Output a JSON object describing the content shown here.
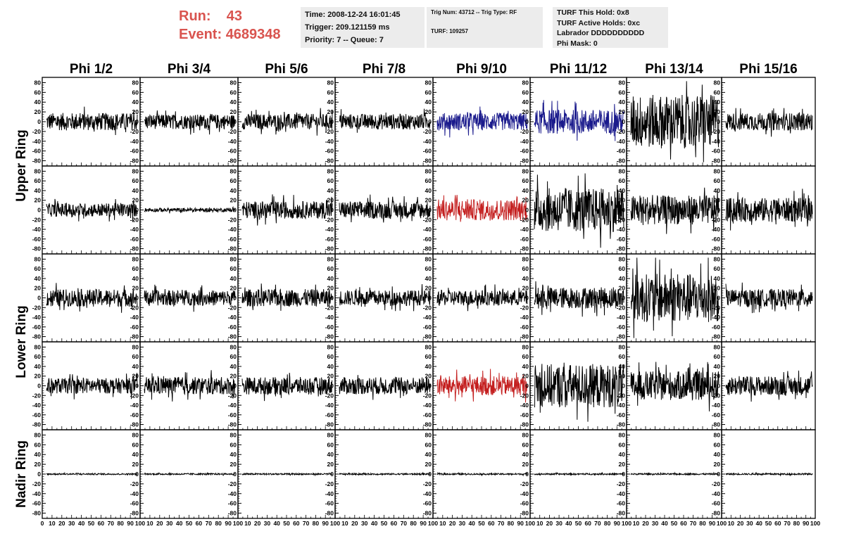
{
  "header": {
    "run_label": "Run:",
    "run_value": "43",
    "event_label": "Event:",
    "event_value": "4689348",
    "time_line": "Time: 2008-12-24 16:01:45",
    "trigger_line": "Trigger: 209.121159 ms",
    "priority_line": "Priority: 7 -- Queue: 7",
    "trig_line": "Trig Num: 43712 -- Trig Type: RF",
    "turf_line": "TURF: 109257",
    "turf_hold_line": "TURF This Hold: 0x8",
    "turf_active_line": "TURF Active Holds: 0xc",
    "labrador_line": "Labrador DDDDDDDDDD",
    "phi_mask_line": "Phi Mask: 0"
  },
  "colors": {
    "run_text": "#d9544f",
    "trace_default": "#000000",
    "trace_blue": "#1a1a8c",
    "trace_red": "#c42020",
    "info_box_bg": "#ececec"
  },
  "chart_data": {
    "type": "line",
    "column_labels": [
      "Phi 1/2",
      "Phi 3/4",
      "Phi 5/6",
      "Phi 7/8",
      "Phi 9/10",
      "Phi 11/12",
      "Phi 13/14",
      "Phi 15/16"
    ],
    "row_labels": [
      "Upper Ring",
      "Lower Ring",
      "Nadir Ring"
    ],
    "panel_rows_per_group": [
      2,
      2,
      1
    ],
    "ylim": [
      -85,
      85
    ],
    "yticks": [
      -80,
      -60,
      -40,
      -20,
      0,
      20,
      40,
      60,
      80
    ],
    "xlim": [
      0,
      100
    ],
    "xticks_first_panel": [
      "0",
      "10",
      "20",
      "30",
      "40",
      "50",
      "60",
      "70",
      "80",
      "90",
      "100"
    ],
    "xticks_bottom_labels": [
      "0",
      "10",
      "20",
      "30",
      "40",
      "50",
      "60",
      "70",
      "80",
      "90",
      "100"
    ],
    "grid": false,
    "panels_amplitude": [
      [
        18,
        15,
        16,
        16,
        18,
        25,
        55,
        18
      ],
      [
        14,
        4,
        18,
        18,
        22,
        45,
        30,
        25
      ],
      [
        18,
        16,
        18,
        16,
        16,
        22,
        50,
        18
      ],
      [
        16,
        18,
        18,
        18,
        20,
        45,
        30,
        20
      ],
      [
        1.5,
        1.5,
        1.5,
        1.5,
        1.5,
        1.5,
        1.5,
        1.5
      ]
    ],
    "panels_color": [
      [
        "default",
        "default",
        "default",
        "default",
        "blue",
        "blue",
        "default",
        "default"
      ],
      [
        "default",
        "default",
        "default",
        "default",
        "red",
        "default",
        "default",
        "default"
      ],
      [
        "default",
        "default",
        "default",
        "default",
        "default",
        "default",
        "default",
        "default"
      ],
      [
        "default",
        "default",
        "default",
        "default",
        "red",
        "default",
        "default",
        "default"
      ],
      [
        "default",
        "default",
        "default",
        "default",
        "default",
        "default",
        "default",
        "default"
      ]
    ]
  }
}
